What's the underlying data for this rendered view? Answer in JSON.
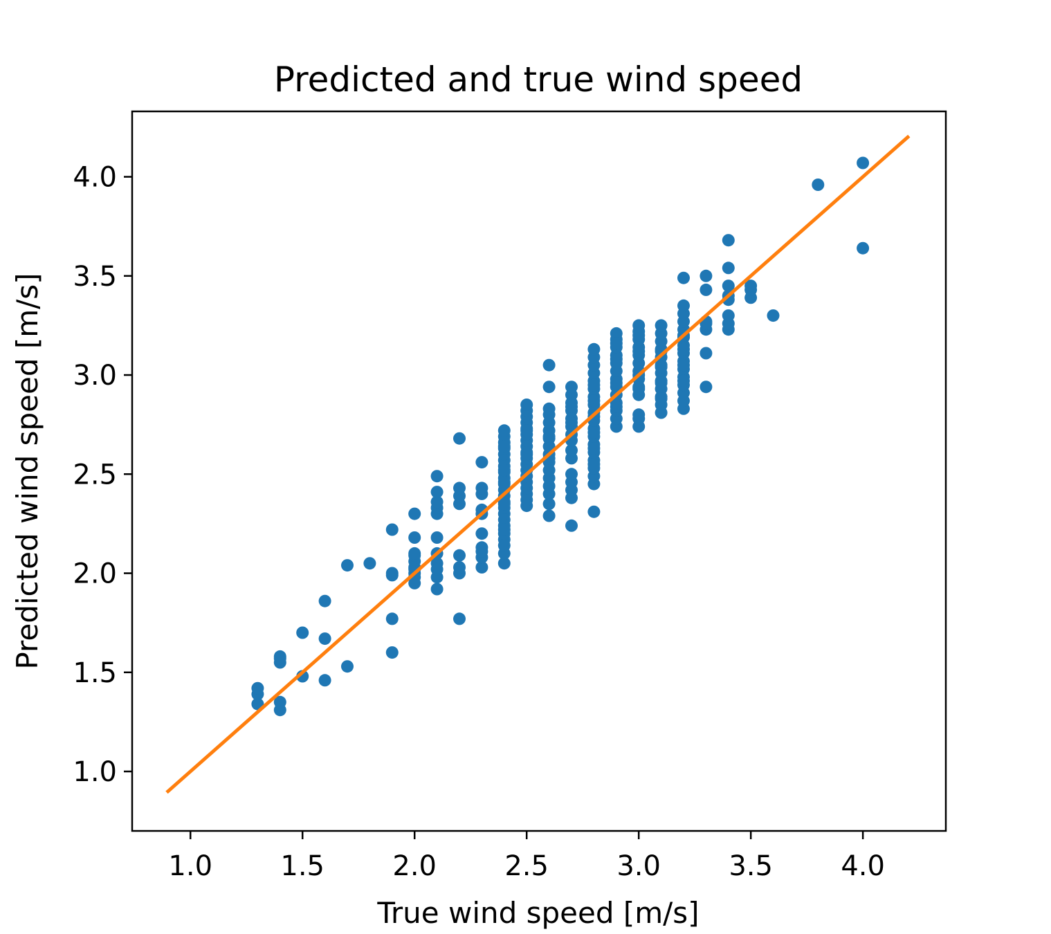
{
  "chart_data": {
    "type": "scatter",
    "title": "Predicted and true wind speed",
    "xlabel": "True wind speed [m/s]",
    "ylabel": "Predicted wind speed [m/s]",
    "xlim": [
      0.74,
      4.37
    ],
    "ylim": [
      0.7,
      4.33
    ],
    "xticks": [
      "1.0",
      "1.5",
      "2.0",
      "2.5",
      "3.0",
      "3.5",
      "4.0"
    ],
    "yticks": [
      "1.0",
      "1.5",
      "2.0",
      "2.5",
      "3.0",
      "3.5",
      "4.0"
    ],
    "grid": false,
    "colors": {
      "points": "#1f77b4",
      "line": "#ff7f0e"
    },
    "line": {
      "x": [
        0.9,
        4.2
      ],
      "y": [
        0.9,
        4.2
      ]
    },
    "points": {
      "x": [
        1.3,
        1.3,
        1.3,
        1.4,
        1.4,
        1.4,
        1.4,
        1.4,
        1.5,
        1.5,
        1.6,
        1.6,
        1.6,
        1.7,
        1.7,
        1.8,
        1.9,
        1.9,
        1.9,
        1.9,
        1.9,
        2.0,
        2.0,
        2.0,
        2.0,
        2.0,
        2.0,
        2.0,
        2.0,
        2.0,
        2.0,
        2.1,
        2.1,
        2.1,
        2.1,
        2.1,
        2.1,
        2.1,
        2.1,
        2.1,
        2.1,
        2.1,
        2.2,
        2.2,
        2.2,
        2.2,
        2.2,
        2.2,
        2.2,
        2.2,
        2.3,
        2.3,
        2.3,
        2.3,
        2.3,
        2.3,
        2.3,
        2.3,
        2.3,
        2.3,
        2.4,
        2.4,
        2.4,
        2.4,
        2.4,
        2.4,
        2.4,
        2.4,
        2.4,
        2.4,
        2.4,
        2.4,
        2.4,
        2.4,
        2.4,
        2.4,
        2.4,
        2.4,
        2.4,
        2.4,
        2.4,
        2.4,
        2.4,
        2.4,
        2.4,
        2.4,
        2.4,
        2.5,
        2.5,
        2.5,
        2.5,
        2.5,
        2.5,
        2.5,
        2.5,
        2.5,
        2.5,
        2.5,
        2.5,
        2.5,
        2.5,
        2.5,
        2.5,
        2.5,
        2.5,
        2.5,
        2.5,
        2.6,
        2.6,
        2.6,
        2.6,
        2.6,
        2.6,
        2.6,
        2.6,
        2.6,
        2.6,
        2.6,
        2.6,
        2.6,
        2.6,
        2.6,
        2.6,
        2.6,
        2.6,
        2.7,
        2.7,
        2.7,
        2.7,
        2.7,
        2.7,
        2.7,
        2.7,
        2.7,
        2.7,
        2.7,
        2.7,
        2.7,
        2.7,
        2.7,
        2.7,
        2.7,
        2.8,
        2.8,
        2.8,
        2.8,
        2.8,
        2.8,
        2.8,
        2.8,
        2.8,
        2.8,
        2.8,
        2.8,
        2.8,
        2.8,
        2.8,
        2.8,
        2.8,
        2.8,
        2.8,
        2.8,
        2.8,
        2.8,
        2.8,
        2.8,
        2.8,
        2.9,
        2.9,
        2.9,
        2.9,
        2.9,
        2.9,
        2.9,
        2.9,
        2.9,
        2.9,
        2.9,
        2.9,
        2.9,
        2.9,
        2.9,
        2.9,
        2.9,
        3.0,
        3.0,
        3.0,
        3.0,
        3.0,
        3.0,
        3.0,
        3.0,
        3.0,
        3.0,
        3.0,
        3.0,
        3.0,
        3.0,
        3.0,
        3.0,
        3.0,
        3.1,
        3.1,
        3.1,
        3.1,
        3.1,
        3.1,
        3.1,
        3.1,
        3.1,
        3.1,
        3.1,
        3.1,
        3.1,
        3.1,
        3.1,
        3.1,
        3.2,
        3.2,
        3.2,
        3.2,
        3.2,
        3.2,
        3.2,
        3.2,
        3.2,
        3.2,
        3.2,
        3.2,
        3.2,
        3.2,
        3.2,
        3.2,
        3.2,
        3.2,
        3.2,
        3.3,
        3.3,
        3.3,
        3.3,
        3.3,
        3.3,
        3.3,
        3.4,
        3.4,
        3.4,
        3.4,
        3.4,
        3.4,
        3.4,
        3.4,
        3.5,
        3.5,
        3.5,
        3.6,
        3.8,
        4.0,
        4.0
      ],
      "y": [
        1.34,
        1.39,
        1.42,
        1.31,
        1.35,
        1.55,
        1.58,
        1.57,
        1.48,
        1.7,
        1.46,
        1.67,
        1.86,
        1.53,
        2.04,
        2.05,
        1.6,
        1.77,
        2.0,
        2.22,
        1.99,
        1.95,
        1.98,
        2.0,
        2.03,
        2.06,
        2.09,
        2.1,
        2.18,
        2.3,
        2.02,
        1.92,
        1.98,
        2.05,
        2.1,
        2.18,
        2.3,
        2.33,
        2.36,
        2.41,
        2.49,
        2.02,
        1.77,
        2.0,
        2.03,
        2.09,
        2.35,
        2.39,
        2.43,
        2.68,
        2.03,
        2.08,
        2.11,
        2.13,
        2.2,
        2.3,
        2.32,
        2.4,
        2.43,
        2.56,
        2.05,
        2.1,
        2.17,
        2.2,
        2.24,
        2.27,
        2.3,
        2.33,
        2.36,
        2.39,
        2.42,
        2.45,
        2.48,
        2.51,
        2.54,
        2.57,
        2.6,
        2.63,
        2.66,
        2.69,
        2.72,
        2.14,
        2.22,
        2.35,
        2.46,
        2.52,
        2.64,
        2.34,
        2.37,
        2.4,
        2.43,
        2.46,
        2.49,
        2.52,
        2.55,
        2.58,
        2.61,
        2.64,
        2.67,
        2.7,
        2.73,
        2.76,
        2.79,
        2.82,
        2.85,
        2.6,
        2.72,
        2.29,
        2.35,
        2.4,
        2.44,
        2.48,
        2.52,
        2.56,
        2.6,
        2.64,
        2.68,
        2.72,
        2.76,
        2.8,
        2.83,
        2.94,
        3.05,
        2.58,
        2.69,
        2.24,
        2.38,
        2.42,
        2.46,
        2.5,
        2.58,
        2.62,
        2.7,
        2.74,
        2.78,
        2.82,
        2.86,
        2.9,
        2.94,
        2.67,
        2.76,
        2.84,
        2.31,
        2.45,
        2.49,
        2.53,
        2.57,
        2.61,
        2.65,
        2.69,
        2.73,
        2.77,
        2.81,
        2.85,
        2.89,
        2.93,
        2.97,
        3.01,
        3.05,
        3.09,
        3.13,
        2.55,
        2.63,
        2.71,
        2.79,
        2.87,
        2.95,
        2.74,
        2.78,
        2.82,
        2.86,
        2.9,
        2.94,
        2.98,
        3.02,
        3.06,
        3.1,
        3.14,
        3.18,
        3.21,
        2.84,
        2.96,
        3.08,
        3.16,
        2.74,
        2.78,
        2.8,
        2.9,
        2.94,
        2.98,
        3.02,
        3.06,
        3.1,
        3.14,
        3.18,
        3.22,
        3.25,
        2.93,
        3.0,
        3.12,
        3.2,
        2.81,
        2.85,
        2.89,
        2.93,
        2.97,
        3.01,
        3.05,
        3.09,
        3.13,
        3.17,
        3.21,
        3.25,
        2.88,
        2.96,
        3.04,
        3.12,
        2.83,
        2.87,
        2.91,
        2.95,
        2.99,
        3.03,
        3.07,
        3.11,
        3.15,
        3.19,
        3.23,
        3.27,
        3.31,
        3.35,
        3.49,
        2.97,
        3.05,
        3.13,
        3.2,
        2.94,
        3.11,
        3.23,
        3.27,
        3.43,
        3.5,
        3.26,
        3.23,
        3.26,
        3.3,
        3.38,
        3.4,
        3.45,
        3.54,
        3.68,
        3.39,
        3.43,
        3.45,
        3.3,
        3.96,
        3.64,
        4.07
      ]
    }
  }
}
